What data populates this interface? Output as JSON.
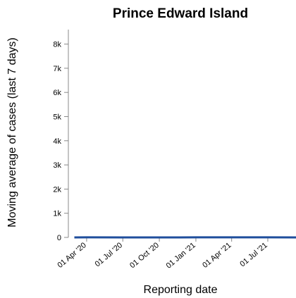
{
  "chart_data": {
    "type": "line",
    "title": "Prince Edward Island",
    "xlabel": "Reporting date",
    "ylabel": "Moving average of cases (last 7 days)",
    "ylim": [
      0,
      8600
    ],
    "yticks": [
      0,
      1000,
      2000,
      3000,
      4000,
      5000,
      6000,
      7000,
      8000
    ],
    "ytick_labels": [
      "0",
      "1k",
      "2k",
      "3k",
      "4k",
      "5k",
      "6k",
      "7k",
      "8k"
    ],
    "xlim": [
      "2020-02-15",
      "2021-09-10"
    ],
    "xticks": [
      "2020-04-01",
      "2020-07-01",
      "2020-10-01",
      "2021-01-01",
      "2021-04-01",
      "2021-07-01"
    ],
    "xtick_labels": [
      "01 Apr '20",
      "01 Jul '20",
      "01 Oct '20",
      "01 Jan '21",
      "01 Apr '21",
      "01 Jul '21"
    ],
    "series": [
      {
        "color": "#1f4e9c",
        "x": [
          "2020-03-01",
          "2020-04-01",
          "2020-07-01",
          "2020-10-01",
          "2021-01-01",
          "2021-04-01",
          "2021-07-01",
          "2021-09-10"
        ],
        "y": [
          0,
          2,
          1,
          1,
          3,
          4,
          2,
          1
        ]
      }
    ],
    "grid": false
  }
}
